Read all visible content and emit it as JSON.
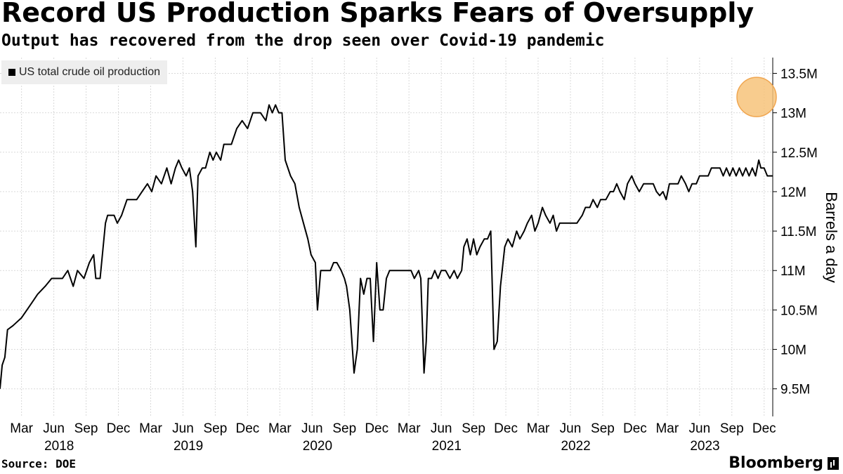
{
  "title": "Record US Production Sparks Fears of Oversupply",
  "subtitle": "Output has recovered from the drop seen over Covid-19 pandemic",
  "source": "Source: DOE",
  "brand": "Bloomberg",
  "chart_data": {
    "type": "line",
    "title": "Record US Production Sparks Fears of Oversupply",
    "ylabel": "Barrels a day",
    "xlabel": "",
    "ylim": [
      9.15,
      13.7
    ],
    "yticks": [
      9.5,
      10,
      10.5,
      11,
      11.5,
      12,
      12.5,
      13,
      13.5
    ],
    "ytick_labels": [
      "9.5M",
      "10M",
      "10.5M",
      "11M",
      "11.5M",
      "12M",
      "12.5M",
      "13M",
      "13.5M"
    ],
    "xlim": [
      0,
      71.8
    ],
    "month_ticks": [
      {
        "label": "Mar",
        "x": 2
      },
      {
        "label": "Jun",
        "x": 5
      },
      {
        "label": "Sep",
        "x": 8
      },
      {
        "label": "Dec",
        "x": 11
      },
      {
        "label": "Mar",
        "x": 14
      },
      {
        "label": "Jun",
        "x": 17
      },
      {
        "label": "Sep",
        "x": 20
      },
      {
        "label": "Dec",
        "x": 23
      },
      {
        "label": "Mar",
        "x": 26
      },
      {
        "label": "Jun",
        "x": 29
      },
      {
        "label": "Sep",
        "x": 32
      },
      {
        "label": "Dec",
        "x": 35
      },
      {
        "label": "Mar",
        "x": 38
      },
      {
        "label": "Jun",
        "x": 41
      },
      {
        "label": "Sep",
        "x": 44
      },
      {
        "label": "Dec",
        "x": 47
      },
      {
        "label": "Mar",
        "x": 50
      },
      {
        "label": "Jun",
        "x": 53
      },
      {
        "label": "Sep",
        "x": 56
      },
      {
        "label": "Dec",
        "x": 59
      },
      {
        "label": "Mar",
        "x": 62
      },
      {
        "label": "Jun",
        "x": 65
      },
      {
        "label": "Sep",
        "x": 68
      },
      {
        "label": "Dec",
        "x": 71
      }
    ],
    "year_ticks": [
      {
        "label": "2018",
        "x": 5.5
      },
      {
        "label": "2019",
        "x": 17.5
      },
      {
        "label": "2020",
        "x": 29.5
      },
      {
        "label": "2021",
        "x": 41.5
      },
      {
        "label": "2022",
        "x": 53.5
      },
      {
        "label": "2023",
        "x": 65.5
      }
    ],
    "legend": [
      "US total crude oil production"
    ],
    "legend_position": "top-left",
    "highlight": {
      "x": 70.3,
      "y": 13.2
    },
    "series": [
      {
        "name": "US total crude oil production",
        "color": "#000000",
        "points": [
          [
            0.0,
            9.5
          ],
          [
            0.2,
            9.8
          ],
          [
            0.45,
            9.9
          ],
          [
            0.7,
            10.25
          ],
          [
            1.2,
            10.3
          ],
          [
            1.6,
            10.35
          ],
          [
            2.0,
            10.4
          ],
          [
            2.5,
            10.5
          ],
          [
            3.0,
            10.6
          ],
          [
            3.5,
            10.7
          ],
          [
            4.2,
            10.8
          ],
          [
            4.8,
            10.9
          ],
          [
            5.8,
            10.9
          ],
          [
            6.3,
            11.0
          ],
          [
            6.8,
            10.8
          ],
          [
            7.2,
            11.0
          ],
          [
            7.8,
            10.9
          ],
          [
            8.3,
            11.1
          ],
          [
            8.7,
            11.2
          ],
          [
            8.9,
            10.9
          ],
          [
            9.3,
            10.9
          ],
          [
            9.8,
            11.6
          ],
          [
            10.0,
            11.7
          ],
          [
            10.6,
            11.7
          ],
          [
            10.9,
            11.6
          ],
          [
            11.3,
            11.7
          ],
          [
            11.8,
            11.9
          ],
          [
            12.2,
            11.9
          ],
          [
            12.7,
            11.9
          ],
          [
            13.2,
            12.0
          ],
          [
            13.7,
            12.1
          ],
          [
            14.1,
            12.0
          ],
          [
            14.5,
            12.2
          ],
          [
            15.0,
            12.1
          ],
          [
            15.5,
            12.3
          ],
          [
            15.9,
            12.1
          ],
          [
            16.3,
            12.3
          ],
          [
            16.6,
            12.4
          ],
          [
            16.9,
            12.3
          ],
          [
            17.3,
            12.2
          ],
          [
            17.6,
            12.3
          ],
          [
            17.9,
            12.0
          ],
          [
            18.2,
            11.3
          ],
          [
            18.4,
            12.2
          ],
          [
            18.8,
            12.3
          ],
          [
            19.1,
            12.3
          ],
          [
            19.5,
            12.5
          ],
          [
            19.8,
            12.4
          ],
          [
            20.1,
            12.5
          ],
          [
            20.5,
            12.4
          ],
          [
            20.8,
            12.6
          ],
          [
            21.5,
            12.6
          ],
          [
            22.0,
            12.8
          ],
          [
            22.5,
            12.9
          ],
          [
            23.0,
            12.8
          ],
          [
            23.5,
            13.0
          ],
          [
            24.2,
            13.0
          ],
          [
            24.7,
            12.9
          ],
          [
            25.0,
            13.1
          ],
          [
            25.3,
            13.0
          ],
          [
            25.6,
            13.1
          ],
          [
            25.9,
            13.0
          ],
          [
            26.2,
            13.0
          ],
          [
            26.5,
            12.4
          ],
          [
            27.0,
            12.2
          ],
          [
            27.4,
            12.1
          ],
          [
            27.8,
            11.8
          ],
          [
            28.2,
            11.6
          ],
          [
            28.6,
            11.4
          ],
          [
            28.9,
            11.2
          ],
          [
            29.3,
            11.1
          ],
          [
            29.5,
            10.5
          ],
          [
            29.8,
            11.0
          ],
          [
            30.3,
            11.0
          ],
          [
            30.7,
            11.0
          ],
          [
            31.0,
            11.1
          ],
          [
            31.3,
            11.1
          ],
          [
            31.7,
            11.0
          ],
          [
            32.0,
            10.9
          ],
          [
            32.2,
            10.8
          ],
          [
            32.5,
            10.5
          ],
          [
            32.9,
            9.7
          ],
          [
            33.2,
            10.0
          ],
          [
            33.5,
            10.9
          ],
          [
            33.8,
            10.7
          ],
          [
            34.1,
            10.9
          ],
          [
            34.4,
            10.9
          ],
          [
            34.7,
            10.1
          ],
          [
            35.0,
            11.1
          ],
          [
            35.3,
            10.5
          ],
          [
            35.6,
            10.5
          ],
          [
            35.9,
            10.9
          ],
          [
            36.2,
            11.0
          ],
          [
            36.7,
            11.0
          ],
          [
            37.2,
            11.0
          ],
          [
            37.8,
            11.0
          ],
          [
            38.2,
            11.0
          ],
          [
            38.5,
            10.9
          ],
          [
            38.9,
            11.0
          ],
          [
            39.1,
            10.9
          ],
          [
            39.4,
            9.7
          ],
          [
            39.6,
            10.1
          ],
          [
            39.8,
            10.9
          ],
          [
            40.1,
            10.9
          ],
          [
            40.4,
            11.0
          ],
          [
            40.7,
            10.9
          ],
          [
            41.0,
            11.0
          ],
          [
            41.4,
            11.0
          ],
          [
            41.8,
            10.9
          ],
          [
            42.2,
            11.0
          ],
          [
            42.5,
            10.9
          ],
          [
            42.9,
            11.0
          ],
          [
            43.1,
            11.3
          ],
          [
            43.4,
            11.4
          ],
          [
            43.7,
            11.2
          ],
          [
            44.0,
            11.4
          ],
          [
            44.3,
            11.2
          ],
          [
            44.6,
            11.3
          ],
          [
            45.0,
            11.4
          ],
          [
            45.3,
            11.4
          ],
          [
            45.6,
            11.5
          ],
          [
            45.9,
            10.0
          ],
          [
            46.2,
            10.1
          ],
          [
            46.5,
            10.8
          ],
          [
            46.9,
            11.3
          ],
          [
            47.2,
            11.4
          ],
          [
            47.6,
            11.3
          ],
          [
            48.0,
            11.5
          ],
          [
            48.3,
            11.4
          ],
          [
            48.7,
            11.5
          ],
          [
            49.0,
            11.6
          ],
          [
            49.4,
            11.7
          ],
          [
            49.7,
            11.5
          ],
          [
            50.0,
            11.6
          ],
          [
            50.4,
            11.8
          ],
          [
            50.7,
            11.7
          ],
          [
            51.1,
            11.6
          ],
          [
            51.4,
            11.7
          ],
          [
            51.7,
            11.5
          ],
          [
            52.0,
            11.6
          ],
          [
            52.8,
            11.6
          ],
          [
            53.6,
            11.6
          ],
          [
            54.1,
            11.7
          ],
          [
            54.4,
            11.8
          ],
          [
            54.8,
            11.8
          ],
          [
            55.1,
            11.9
          ],
          [
            55.5,
            11.8
          ],
          [
            55.8,
            11.9
          ],
          [
            56.3,
            11.9
          ],
          [
            56.7,
            12.0
          ],
          [
            57.0,
            12.0
          ],
          [
            57.3,
            12.1
          ],
          [
            57.6,
            12.0
          ],
          [
            58.0,
            11.9
          ],
          [
            58.3,
            12.1
          ],
          [
            58.7,
            12.2
          ],
          [
            59.0,
            12.1
          ],
          [
            59.4,
            12.0
          ],
          [
            59.8,
            12.1
          ],
          [
            60.3,
            12.1
          ],
          [
            60.7,
            12.1
          ],
          [
            61.0,
            12.0
          ],
          [
            61.3,
            11.95
          ],
          [
            61.6,
            12.0
          ],
          [
            61.9,
            11.9
          ],
          [
            62.2,
            12.1
          ],
          [
            62.7,
            12.1
          ],
          [
            63.0,
            12.1
          ],
          [
            63.3,
            12.2
          ],
          [
            63.7,
            12.1
          ],
          [
            64.0,
            12.0
          ],
          [
            64.3,
            12.1
          ],
          [
            64.7,
            12.1
          ],
          [
            65.0,
            12.2
          ],
          [
            65.5,
            12.2
          ],
          [
            65.8,
            12.2
          ],
          [
            66.1,
            12.3
          ],
          [
            66.5,
            12.3
          ],
          [
            66.9,
            12.3
          ],
          [
            67.2,
            12.2
          ],
          [
            67.5,
            12.3
          ],
          [
            67.8,
            12.2
          ],
          [
            68.1,
            12.3
          ],
          [
            68.4,
            12.2
          ],
          [
            68.7,
            12.3
          ],
          [
            69.0,
            12.2
          ],
          [
            69.3,
            12.3
          ],
          [
            69.6,
            12.2
          ],
          [
            69.9,
            12.3
          ],
          [
            70.2,
            12.2
          ],
          [
            70.5,
            12.4
          ],
          [
            70.7,
            12.3
          ],
          [
            71.0,
            12.3
          ],
          [
            71.3,
            12.2
          ],
          [
            71.8,
            12.2
          ]
        ]
      }
    ]
  }
}
